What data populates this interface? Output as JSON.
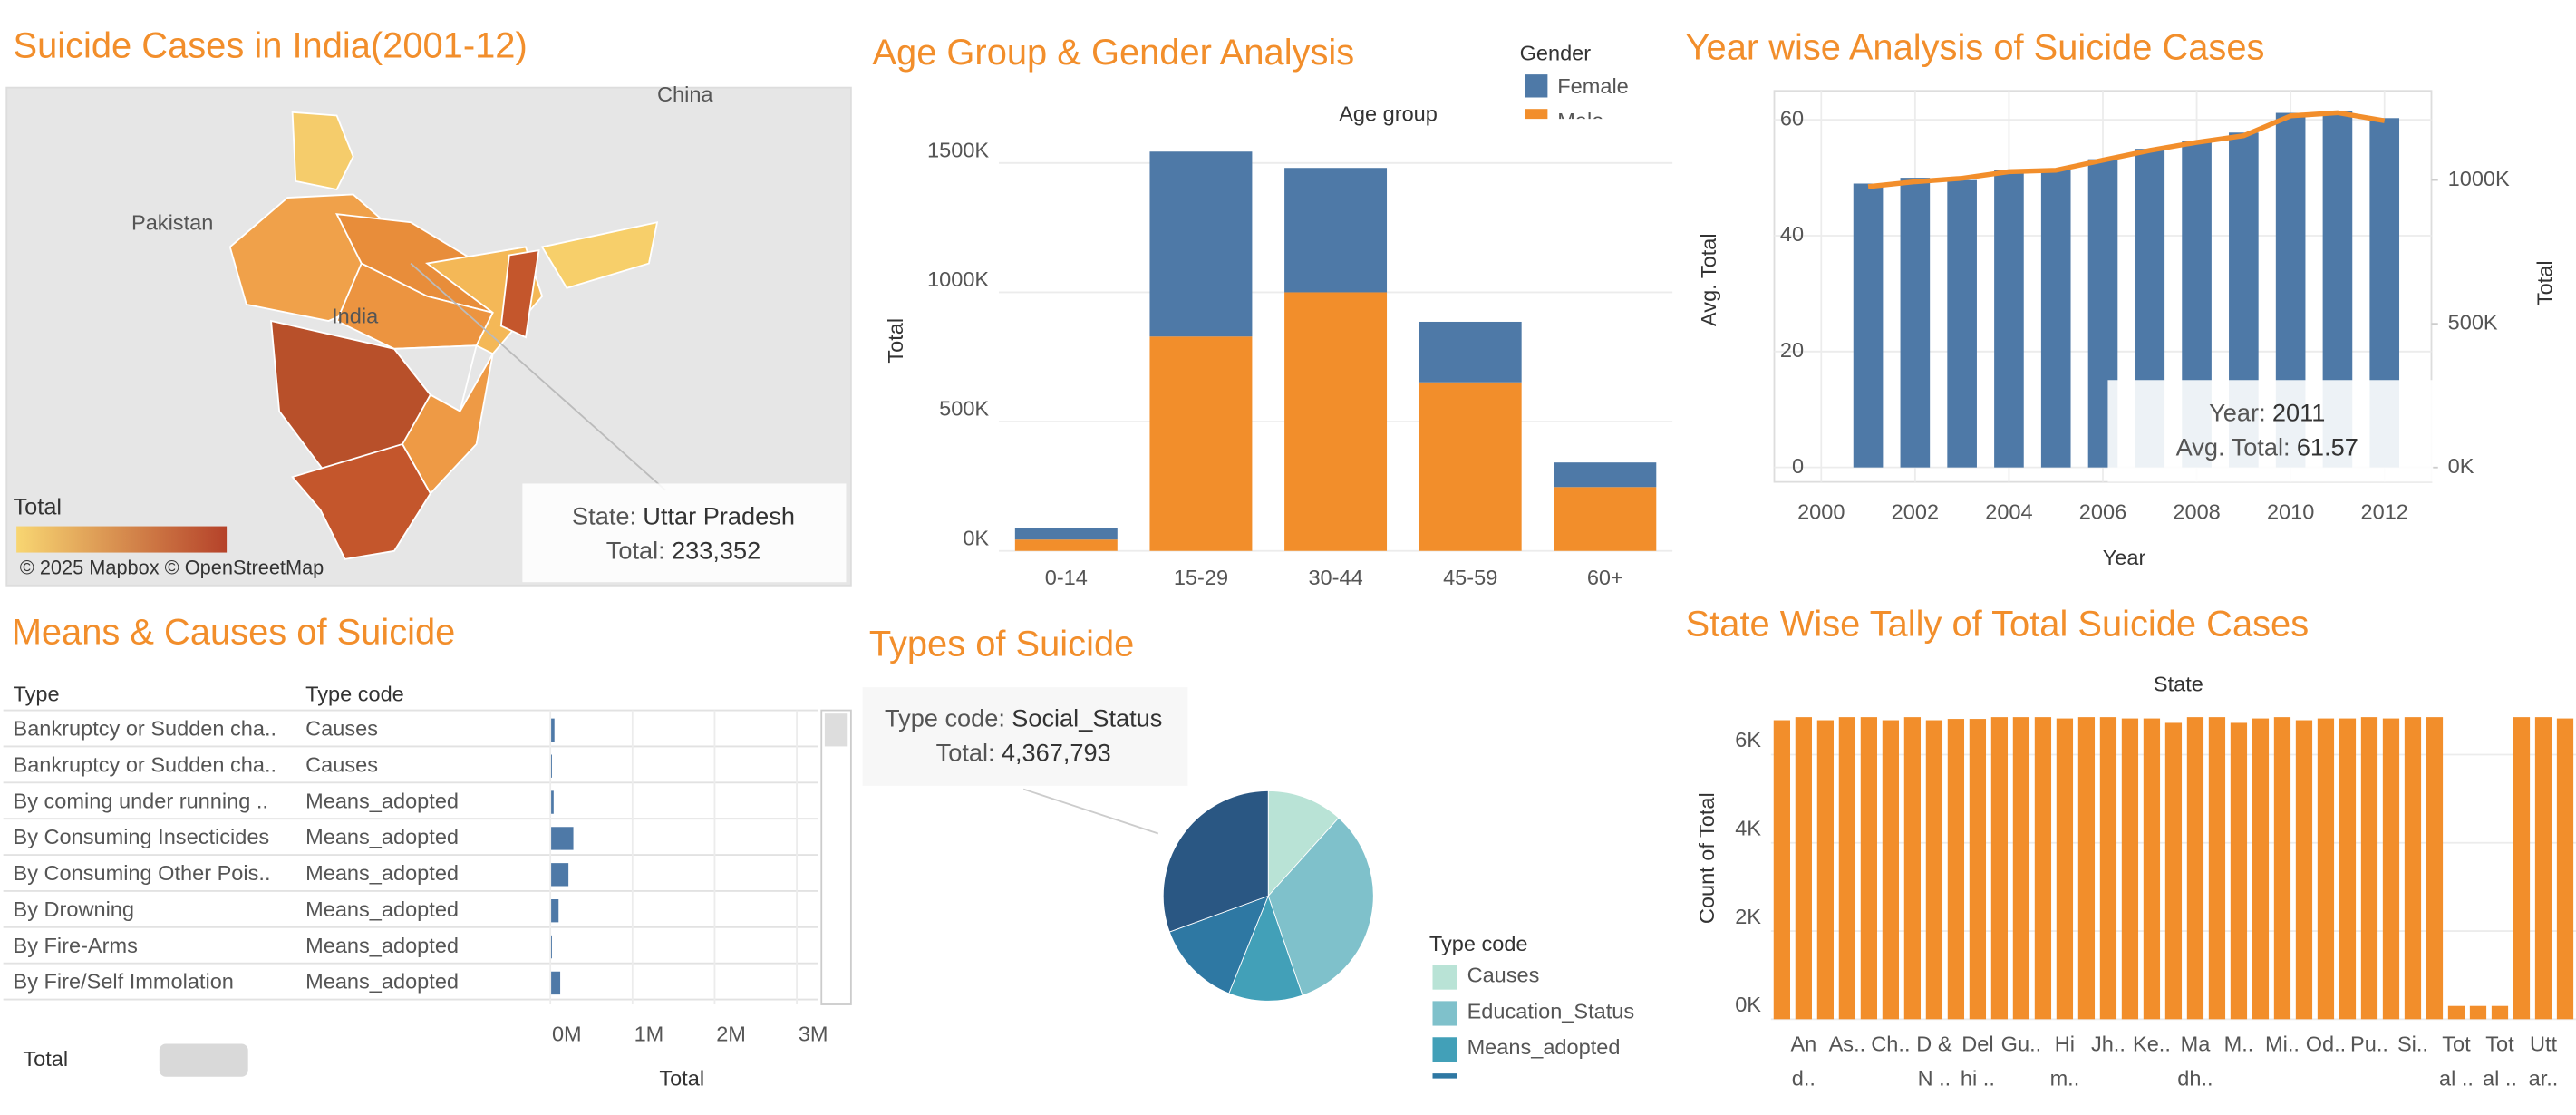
{
  "chart_data": [
    {
      "type": "map",
      "title": "Suicide Cases in India(2001-12)",
      "place_labels": [
        "China",
        "Pakistan",
        "India"
      ],
      "legend_title": "Total",
      "attribution": "© 2025 Mapbox © OpenStreetMap",
      "tooltip": [
        {
          "label": "State:",
          "value": "Uttar Pradesh"
        },
        {
          "label": "Total:",
          "value": "233,352"
        }
      ]
    },
    {
      "type": "stacked_bar",
      "title": "Age Group  & Gender Analysis",
      "x_label": "Age group",
      "y_label": "Total",
      "legend_title": "Gender",
      "categories": [
        "0-14",
        "15-29",
        "30-44",
        "45-59",
        "60+"
      ],
      "series": [
        {
          "name": "Female",
          "color": "#4e79a7",
          "values": [
            45000,
            715000,
            481000,
            234000,
            95000
          ]
        },
        {
          "name": "Male",
          "color": "#f28e2b",
          "values": [
            44000,
            829000,
            1000000,
            652000,
            247000
          ]
        }
      ],
      "ylim": [
        0,
        1620000
      ],
      "yticks": [
        {
          "value": 0,
          "label": "0K"
        },
        {
          "value": 500000,
          "label": "500K"
        },
        {
          "value": 1000000,
          "label": "1000K"
        },
        {
          "value": 1500000,
          "label": "1500K"
        }
      ],
      "grid": true
    },
    {
      "type": "bar_line",
      "title": "Year wise Analysis of Suicide Cases",
      "x_label": "Year",
      "x": [
        2001,
        2002,
        2003,
        2004,
        2005,
        2006,
        2007,
        2008,
        2009,
        2010,
        2011,
        2012
      ],
      "series": [
        {
          "name": "Avg. Total",
          "color": "#4e79a7",
          "values": [
            49,
            50,
            49.6,
            51.3,
            51.3,
            53.2,
            55,
            56.4,
            57.8,
            61.2,
            61.57,
            60.3
          ]
        },
        {
          "name": "Total",
          "color": "#f28e2b",
          "axis": "y2",
          "values": [
            977000,
            994000,
            1006000,
            1029000,
            1034000,
            1069000,
            1103000,
            1131000,
            1154000,
            1223000,
            1234000,
            1206000
          ]
        }
      ],
      "xlim": [
        1999,
        2013
      ],
      "xticks": [
        2000,
        2002,
        2004,
        2006,
        2008,
        2010,
        2012
      ],
      "ylim": [
        -2.5,
        65
      ],
      "yticks": [
        0,
        20,
        40,
        60
      ],
      "y2lim": [
        -50000,
        1310000
      ],
      "y2ticks": [
        {
          "value": 0,
          "label": "0K"
        },
        {
          "value": 500000,
          "label": "500K"
        },
        {
          "value": 1000000,
          "label": "1000K"
        }
      ],
      "grid": true,
      "tooltip": [
        {
          "label": "Year:",
          "value": "2011"
        },
        {
          "label": "Avg. Total:",
          "value": "61.57"
        }
      ]
    },
    {
      "type": "hbar_table",
      "title": "Means & Causes of Suicide",
      "columns": [
        "Type",
        "Type code"
      ],
      "rows": [
        [
          "Bankruptcy or Sudden cha..",
          "Causes"
        ],
        [
          "Bankruptcy or Sudden cha..",
          "Causes"
        ],
        [
          "By coming under running ..",
          "Means_adopted"
        ],
        [
          "By Consuming Insecticides",
          "Means_adopted"
        ],
        [
          "By Consuming Other Pois..",
          "Means_adopted"
        ],
        [
          "By Drowning",
          "Means_adopted"
        ],
        [
          "By Fire-Arms",
          "Means_adopted"
        ],
        [
          "By Fire/Self Immolation",
          "Means_adopted"
        ]
      ],
      "values": [
        50000,
        20000,
        40000,
        280000,
        220000,
        100000,
        20000,
        120000
      ],
      "color": "#4e79a7",
      "x_label": "Total",
      "size_legend": "Total",
      "xlim": [
        0,
        3300000
      ],
      "xticks": [
        {
          "value": 0,
          "label": "0M"
        },
        {
          "value": 1000000,
          "label": "1M"
        },
        {
          "value": 2000000,
          "label": "2M"
        },
        {
          "value": 3000000,
          "label": "3M"
        }
      ]
    },
    {
      "type": "pie",
      "title": "Types of Suicide",
      "legend_title": "Type code",
      "categories": [
        "Causes",
        "Education_Status",
        "Means_adopted",
        null,
        "Social_Status"
      ],
      "values": [
        1668000,
        4725000,
        1628000,
        1906000,
        4367793
      ],
      "colors": [
        "#b9e3d6",
        "#7fc1cb",
        "#42a0b8",
        "#2e78a3",
        "#2a5783"
      ],
      "tooltip": [
        {
          "label": "Type code:",
          "value": "Social_Status"
        },
        {
          "label": "Total:",
          "value": "4,367,793"
        }
      ]
    },
    {
      "type": "bar",
      "title": "State Wise Tally of Total Suicide Cases",
      "x_label": "State",
      "y_label": "Count of Total",
      "color": "#f28e2b",
      "categories": [
        null,
        [
          "An",
          "d.."
        ],
        null,
        [
          "As.."
        ],
        null,
        [
          "Ch.."
        ],
        null,
        [
          "D &",
          "N .."
        ],
        null,
        [
          "Del",
          "hi .."
        ],
        null,
        [
          "Gu.."
        ],
        null,
        [
          "Hi",
          "m.."
        ],
        null,
        [
          "Jh.."
        ],
        null,
        [
          "Ke.."
        ],
        null,
        [
          "Ma",
          "dh.."
        ],
        null,
        [
          "M.."
        ],
        null,
        [
          "Mi.."
        ],
        null,
        [
          "Od.."
        ],
        null,
        [
          "Pu.."
        ],
        null,
        [
          "Si.."
        ],
        null,
        [
          "Tot",
          "al .."
        ],
        null,
        [
          "Tot",
          "al .."
        ],
        null,
        [
          "Utt",
          "ar.."
        ],
        null
      ],
      "values": [
        6780,
        6850,
        6780,
        6850,
        6850,
        6780,
        6850,
        6780,
        6810,
        6810,
        6850,
        6850,
        6850,
        6820,
        6850,
        6850,
        6820,
        6820,
        6720,
        6850,
        6850,
        6720,
        6820,
        6850,
        6780,
        6820,
        6820,
        6850,
        6820,
        6850,
        6850,
        300,
        300,
        300,
        6850,
        6850,
        6820
      ],
      "ylim": [
        0,
        7080
      ],
      "yticks": [
        {
          "value": 0,
          "label": "0K"
        },
        {
          "value": 2000,
          "label": "2K"
        },
        {
          "value": 4000,
          "label": "4K"
        },
        {
          "value": 6000,
          "label": "6K"
        }
      ],
      "grid": true
    }
  ]
}
